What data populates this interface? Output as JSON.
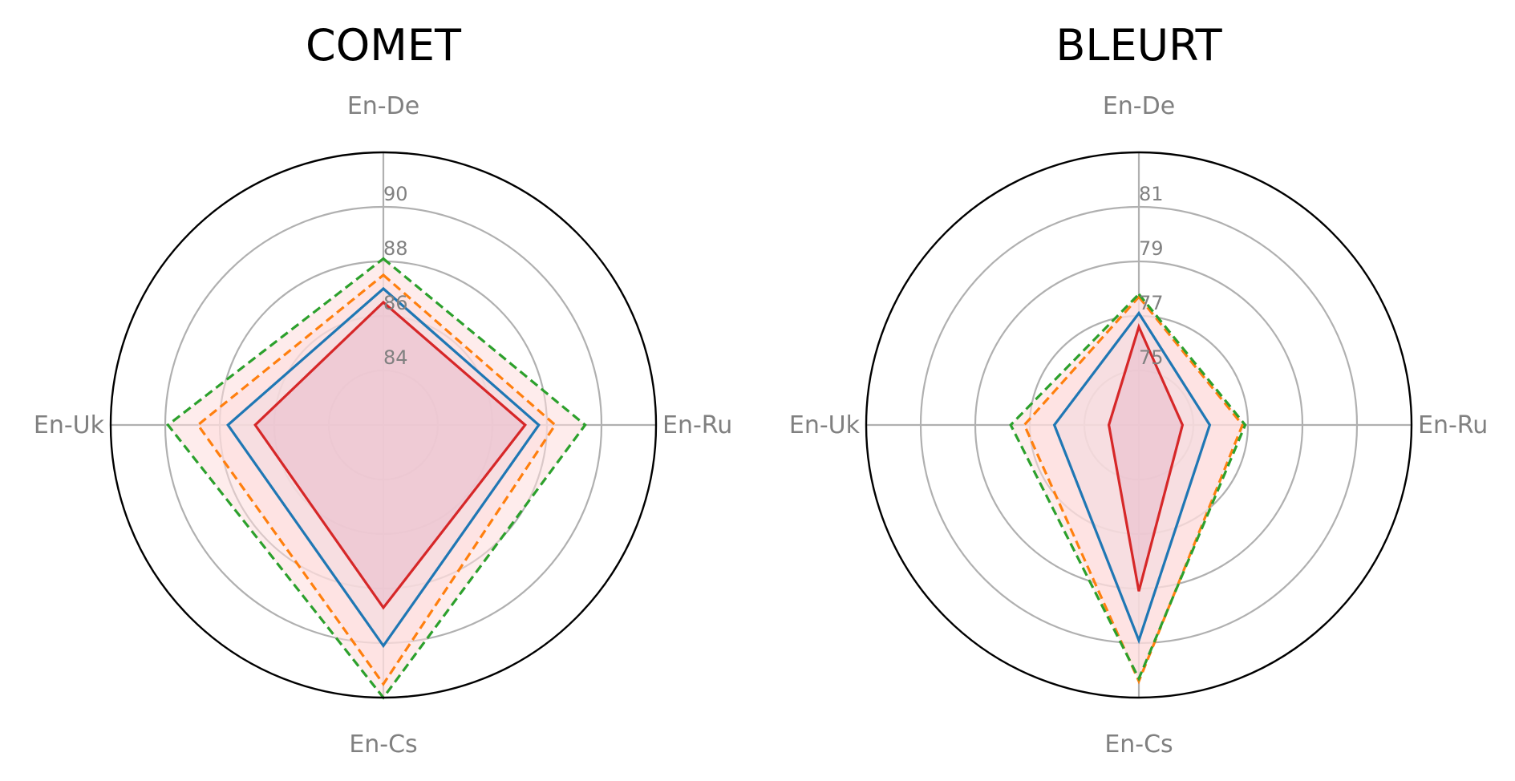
{
  "chart_data": [
    {
      "type": "radar",
      "title": "COMET",
      "axes": [
        "En-De",
        "En-Ru",
        "En-Cs",
        "En-Uk"
      ],
      "rlim": [
        82,
        92
      ],
      "rticks": [
        84,
        86,
        88,
        90
      ],
      "rtick_labels": [
        "84",
        "86",
        "88",
        "90"
      ],
      "grid": true,
      "series": [
        {
          "values": [
            87,
            87.7,
            90.1,
            87.7
          ],
          "color": "#1f77b4",
          "style": "solid",
          "fill": "#c7d2ea"
        },
        {
          "values": [
            87.5,
            88.3,
            91.5,
            88.8
          ],
          "color": "#ff7f0e",
          "style": "dashed",
          "fill": "#fddcdc"
        },
        {
          "values": [
            88.1,
            89.4,
            92,
            89.9
          ],
          "color": "#2ca02c",
          "style": "dashed",
          "fill": "#fddcdc"
        },
        {
          "values": [
            86.5,
            87.2,
            88.7,
            86.7
          ],
          "color": "#d62728",
          "style": "solid",
          "fill": "#e9bccc"
        }
      ]
    },
    {
      "type": "radar",
      "title": "BLEURT",
      "axes": [
        "En-De",
        "En-Ru",
        "En-Cs",
        "En-Uk"
      ],
      "rlim": [
        73,
        83
      ],
      "rticks": [
        75,
        77,
        79,
        81
      ],
      "rtick_labels": [
        "75",
        "77",
        "79",
        "81"
      ],
      "grid": true,
      "series": [
        {
          "values": [
            77.1,
            75.6,
            80.9,
            76.1
          ],
          "color": "#1f77b4",
          "style": "solid",
          "fill": "#c7d2ea"
        },
        {
          "values": [
            77.7,
            76.8,
            82.4,
            77.2
          ],
          "color": "#ff7f0e",
          "style": "dashed",
          "fill": "#fddcdc"
        },
        {
          "values": [
            77.8,
            76.9,
            82.3,
            77.7
          ],
          "color": "#2ca02c",
          "style": "dashed",
          "fill": "#fddcdc"
        },
        {
          "values": [
            76.6,
            74.6,
            79.1,
            74.1
          ],
          "color": "#d62728",
          "style": "solid",
          "fill": "#e9bccc"
        }
      ]
    }
  ]
}
